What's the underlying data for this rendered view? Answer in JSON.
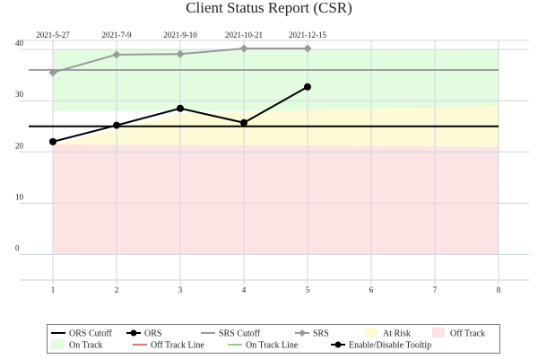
{
  "chart_data": {
    "type": "line",
    "title": "Client Status Report (CSR)",
    "x_ticks": [
      1,
      2,
      3,
      4,
      5,
      6,
      7,
      8
    ],
    "xlim": [
      0.5,
      8.5
    ],
    "y_ticks": [
      0,
      10,
      20,
      30,
      40
    ],
    "ylim": [
      -5,
      43
    ],
    "date_ticks": [
      {
        "x": 1,
        "label": "2021-5-27"
      },
      {
        "x": 2,
        "label": "2021-7-9"
      },
      {
        "x": 3,
        "label": "2021-9-10"
      },
      {
        "x": 4,
        "label": "2021-10-21"
      },
      {
        "x": 5,
        "label": "2021-12-15"
      }
    ],
    "bands": [
      {
        "name": "On Track",
        "color": "#e3fbdf",
        "lower": [
          [
            1,
            28
          ],
          [
            8,
            28
          ]
        ],
        "upper": [
          [
            1,
            40
          ],
          [
            8,
            40
          ]
        ]
      },
      {
        "name": "At Risk",
        "color": "#fdfbd6",
        "lower": [
          [
            1,
            21.5
          ],
          [
            8,
            21
          ]
        ],
        "upper": [
          [
            1,
            21.5
          ],
          [
            3,
            27.5
          ],
          [
            8,
            29
          ]
        ]
      },
      {
        "name": "Off Track",
        "color": "#fbe4e3",
        "lower": [
          [
            1,
            0
          ],
          [
            8,
            0
          ]
        ],
        "upper": [
          [
            1,
            21.5
          ],
          [
            8,
            21
          ]
        ]
      }
    ],
    "cutoffs": [
      {
        "name": "ORS Cutoff",
        "value": 25,
        "color": "#000000"
      },
      {
        "name": "SRS Cutoff",
        "value": 36,
        "color": "#999999"
      }
    ],
    "series": [
      {
        "name": "ORS",
        "color": "#000000",
        "marker": "circle",
        "x": [
          1,
          2,
          3,
          4,
          5
        ],
        "y": [
          22,
          25.2,
          28.5,
          25.7,
          32.7
        ]
      },
      {
        "name": "SRS",
        "color": "#999999",
        "marker": "diamond",
        "x": [
          1,
          2,
          3,
          4,
          5
        ],
        "y": [
          35.5,
          39,
          39.1,
          40.2,
          40.2
        ]
      }
    ],
    "legend": {
      "placement": "bottom",
      "row1": [
        {
          "label": "ORS Cutoff",
          "kind": "line",
          "color": "#000000"
        },
        {
          "label": "ORS",
          "kind": "line-circle",
          "color": "#000000"
        },
        {
          "label": "SRS Cutoff",
          "kind": "line",
          "color": "#999999"
        },
        {
          "label": "SRS",
          "kind": "line-diamond",
          "color": "#999999"
        },
        {
          "label": "At Risk",
          "kind": "swatch",
          "color": "#fdfbd6"
        },
        {
          "label": "Off Track",
          "kind": "swatch",
          "color": "#fbe4e3"
        }
      ],
      "row2": [
        {
          "label": "On Track",
          "kind": "swatch",
          "color": "#e3fbdf"
        },
        {
          "label": "Off Track Line",
          "kind": "line",
          "color": "#e07a6f"
        },
        {
          "label": "On Track Line",
          "kind": "line",
          "color": "#8fd07a"
        },
        {
          "label": "Enable/Disable Tooltip",
          "kind": "line-circle",
          "color": "#000000"
        }
      ]
    }
  }
}
